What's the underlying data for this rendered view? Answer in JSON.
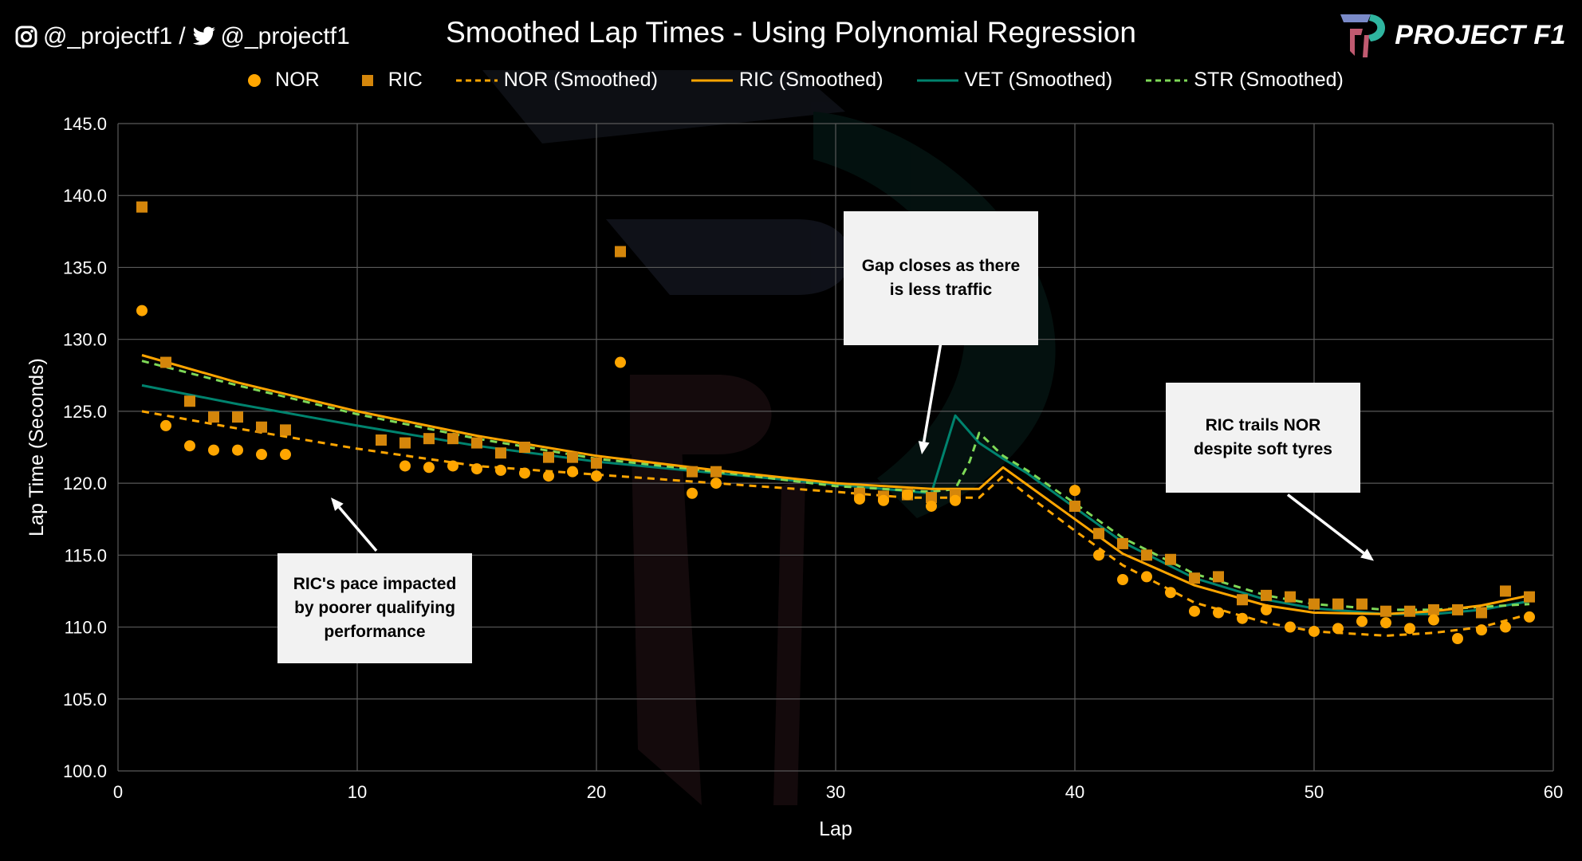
{
  "header": {
    "instagram_handle": "@_projectf1",
    "separator": "/",
    "twitter_handle": "@_projectf1",
    "brand_name": "PROJECT F1",
    "instagram_icon": "instagram-icon",
    "twitter_icon": "twitter-icon",
    "logo_icon": "project-f1-logo-icon"
  },
  "colors": {
    "background": "#000000",
    "nor": "#FFA600",
    "ric": "#D4860B",
    "ric_smoothed": "#FFA500",
    "vet": "#00836E",
    "str": "#7ED957",
    "grid": "#595959",
    "axis_text": "#FFFFFF",
    "callout_bg": "#F2F2F2"
  },
  "annotations": [
    {
      "text": "Gap closes as there is less traffic",
      "arrow_from": [
        34.4,
        129.8
      ],
      "arrow_to": [
        33.6,
        122.0
      ]
    },
    {
      "text": "RIC trails NOR despite soft tyres",
      "arrow_from": [
        48.9,
        119.2
      ],
      "arrow_to": [
        52.5,
        114.6
      ]
    },
    {
      "text": "RIC's pace impacted by poorer qualifying performance",
      "arrow_from": [
        10.8,
        115.3
      ],
      "arrow_to": [
        8.9,
        119.0
      ]
    }
  ],
  "chart_data": {
    "type": "scatter",
    "title": "Smoothed Lap Times - Using Polynomial Regression",
    "xlabel": "Lap",
    "ylabel": "Lap Time (Seconds)",
    "xlim": [
      0,
      60
    ],
    "ylim": [
      100,
      145
    ],
    "x_ticks": [
      "0",
      "10",
      "20",
      "30",
      "40",
      "50",
      "60"
    ],
    "y_ticks": [
      "100.0",
      "105.0",
      "110.0",
      "115.0",
      "120.0",
      "125.0",
      "130.0",
      "135.0",
      "140.0",
      "145.0"
    ],
    "grid": true,
    "legend_position": "top",
    "series": [
      {
        "name": "NOR",
        "kind": "points",
        "marker": "circle",
        "x": [
          1,
          2,
          3,
          4,
          5,
          6,
          7,
          12,
          13,
          14,
          15,
          16,
          17,
          18,
          19,
          20,
          21,
          24,
          25,
          31,
          32,
          33,
          34,
          35,
          40,
          41,
          42,
          43,
          44,
          45,
          46,
          47,
          48,
          49,
          50,
          51,
          52,
          53,
          54,
          55,
          56,
          57,
          58,
          59
        ],
        "y": [
          132.0,
          124.0,
          122.6,
          122.3,
          122.3,
          122.0,
          122.0,
          121.2,
          121.1,
          121.2,
          121.0,
          120.9,
          120.7,
          120.5,
          120.8,
          120.5,
          128.4,
          119.3,
          120.0,
          118.9,
          118.8,
          119.2,
          118.4,
          118.8,
          119.5,
          115.0,
          113.3,
          113.5,
          112.4,
          111.1,
          111.0,
          110.6,
          111.2,
          110.0,
          109.7,
          109.9,
          110.4,
          110.3,
          109.9,
          110.5,
          109.2,
          109.8,
          110.0,
          110.7
        ]
      },
      {
        "name": "RIC",
        "kind": "points",
        "marker": "square",
        "x": [
          1,
          2,
          3,
          4,
          5,
          6,
          7,
          11,
          12,
          13,
          14,
          15,
          16,
          17,
          18,
          19,
          20,
          21,
          24,
          25,
          31,
          32,
          33,
          34,
          35,
          40,
          41,
          42,
          43,
          44,
          45,
          46,
          47,
          48,
          49,
          50,
          51,
          52,
          53,
          54,
          55,
          56,
          57,
          58,
          59
        ],
        "y": [
          139.2,
          128.4,
          125.7,
          124.6,
          124.6,
          123.9,
          123.7,
          123.0,
          122.8,
          123.1,
          123.1,
          122.8,
          122.1,
          122.5,
          121.8,
          121.8,
          121.4,
          136.1,
          120.8,
          120.8,
          119.3,
          119.1,
          119.2,
          119.0,
          119.2,
          118.4,
          116.5,
          115.8,
          115.0,
          114.7,
          113.4,
          113.5,
          111.9,
          112.2,
          112.1,
          111.6,
          111.6,
          111.6,
          111.1,
          111.1,
          111.2,
          111.2,
          111.0,
          112.5,
          112.1
        ]
      },
      {
        "name": "NOR (Smoothed)",
        "kind": "line",
        "dash": "dashed",
        "x": [
          1,
          5,
          10,
          15,
          20,
          25,
          30,
          33,
          35,
          36,
          37,
          38,
          40,
          42,
          45,
          48,
          50,
          53,
          55,
          57,
          59
        ],
        "y": [
          125.0,
          123.8,
          122.4,
          121.2,
          120.6,
          120.0,
          119.4,
          119.0,
          119.0,
          119.0,
          120.5,
          119.2,
          116.7,
          114.3,
          111.7,
          110.3,
          109.7,
          109.4,
          109.6,
          110.0,
          110.9
        ]
      },
      {
        "name": "RIC (Smoothed)",
        "kind": "line",
        "dash": "solid",
        "x": [
          1,
          5,
          10,
          15,
          20,
          25,
          30,
          34,
          36,
          37,
          38,
          40,
          42,
          45,
          48,
          50,
          53,
          55,
          57,
          59
        ],
        "y": [
          128.9,
          127.0,
          125.0,
          123.3,
          121.9,
          120.9,
          120.0,
          119.6,
          119.6,
          121.1,
          119.9,
          117.5,
          115.1,
          112.9,
          111.5,
          111.0,
          110.9,
          111.1,
          111.5,
          112.2
        ]
      },
      {
        "name": "VET (Smoothed)",
        "kind": "line",
        "dash": "solid",
        "x": [
          1,
          5,
          10,
          15,
          20,
          25,
          30,
          34,
          35,
          36,
          37,
          38,
          40,
          42,
          45,
          48,
          50,
          53,
          55,
          57,
          59
        ],
        "y": [
          126.8,
          125.5,
          124.0,
          122.6,
          121.5,
          120.7,
          119.9,
          119.3,
          124.7,
          122.8,
          121.7,
          120.7,
          118.3,
          115.9,
          113.4,
          111.9,
          111.3,
          110.9,
          110.9,
          111.2,
          111.8
        ]
      },
      {
        "name": "STR (Smoothed)",
        "kind": "line",
        "dash": "dashed",
        "x": [
          1,
          5,
          10,
          15,
          20,
          25,
          30,
          34,
          35,
          35.6,
          36,
          37,
          38,
          40,
          42,
          45,
          48,
          50,
          53,
          55,
          57,
          59
        ],
        "y": [
          128.5,
          126.8,
          124.8,
          123.1,
          121.7,
          120.8,
          119.8,
          119.4,
          119.6,
          121.5,
          123.5,
          121.9,
          120.9,
          118.6,
          116.2,
          113.7,
          112.2,
          111.6,
          111.2,
          111.2,
          111.4,
          111.6
        ]
      }
    ]
  }
}
